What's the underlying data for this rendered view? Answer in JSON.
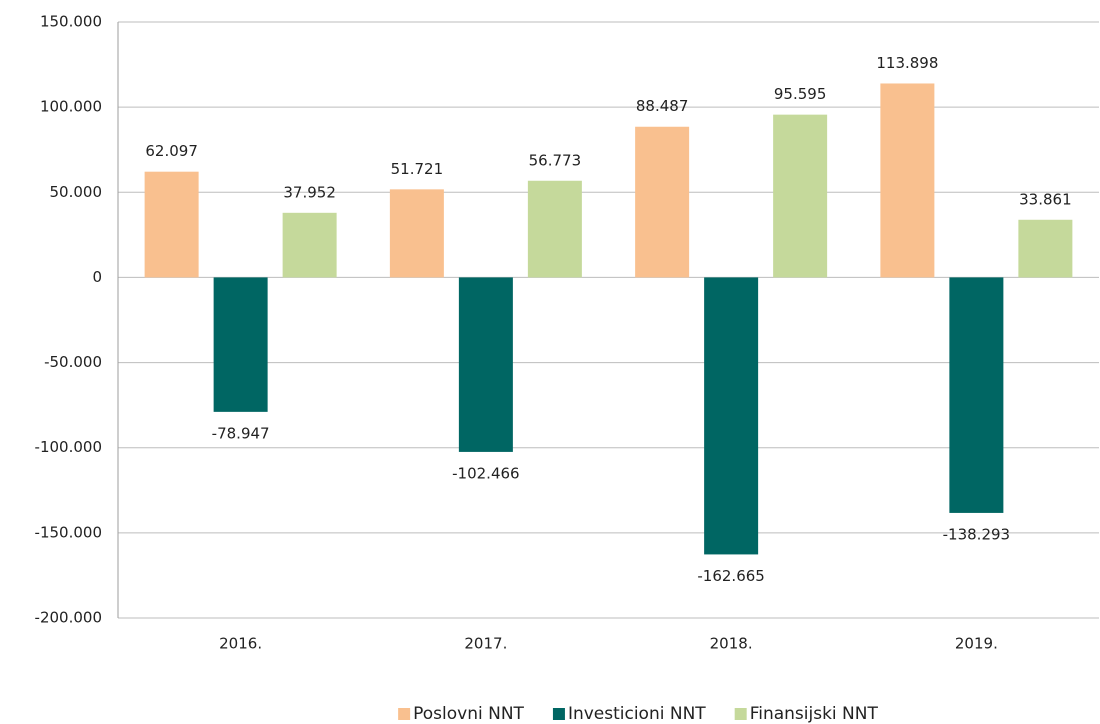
{
  "chart_data": {
    "type": "bar",
    "categories": [
      "2016.",
      "2017.",
      "2018.",
      "2019."
    ],
    "series": [
      {
        "name": "Poslovni NNT",
        "color": "#f9c08f",
        "values": [
          62097,
          51721,
          88487,
          113898
        ],
        "value_labels": [
          "62.097",
          "51.721",
          "88.487",
          "113.898"
        ]
      },
      {
        "name": "Investicioni NNT",
        "color": "#006663",
        "values": [
          -78947,
          -102466,
          -162665,
          -138293
        ],
        "value_labels": [
          "-78.947",
          "-102.466",
          "-162.665",
          "-138.293"
        ]
      },
      {
        "name": "Finansijski NNT",
        "color": "#c5d99b",
        "values": [
          37952,
          56773,
          95595,
          33861
        ],
        "value_labels": [
          "37.952",
          "56.773",
          "95.595",
          "33.861"
        ]
      }
    ],
    "ylim": [
      -200000,
      150000
    ],
    "yticks": [
      {
        "value": -200000,
        "label": "-200.000"
      },
      {
        "value": -150000,
        "label": "-150.000"
      },
      {
        "value": -100000,
        "label": "-100.000"
      },
      {
        "value": -50000,
        "label": "-50.000"
      },
      0,
      {
        "value": 50000,
        "label": "50.000"
      },
      {
        "value": 100000,
        "label": "100.000"
      },
      {
        "value": 150000,
        "label": "150.000"
      }
    ],
    "grid": true,
    "legend": "bottom"
  }
}
